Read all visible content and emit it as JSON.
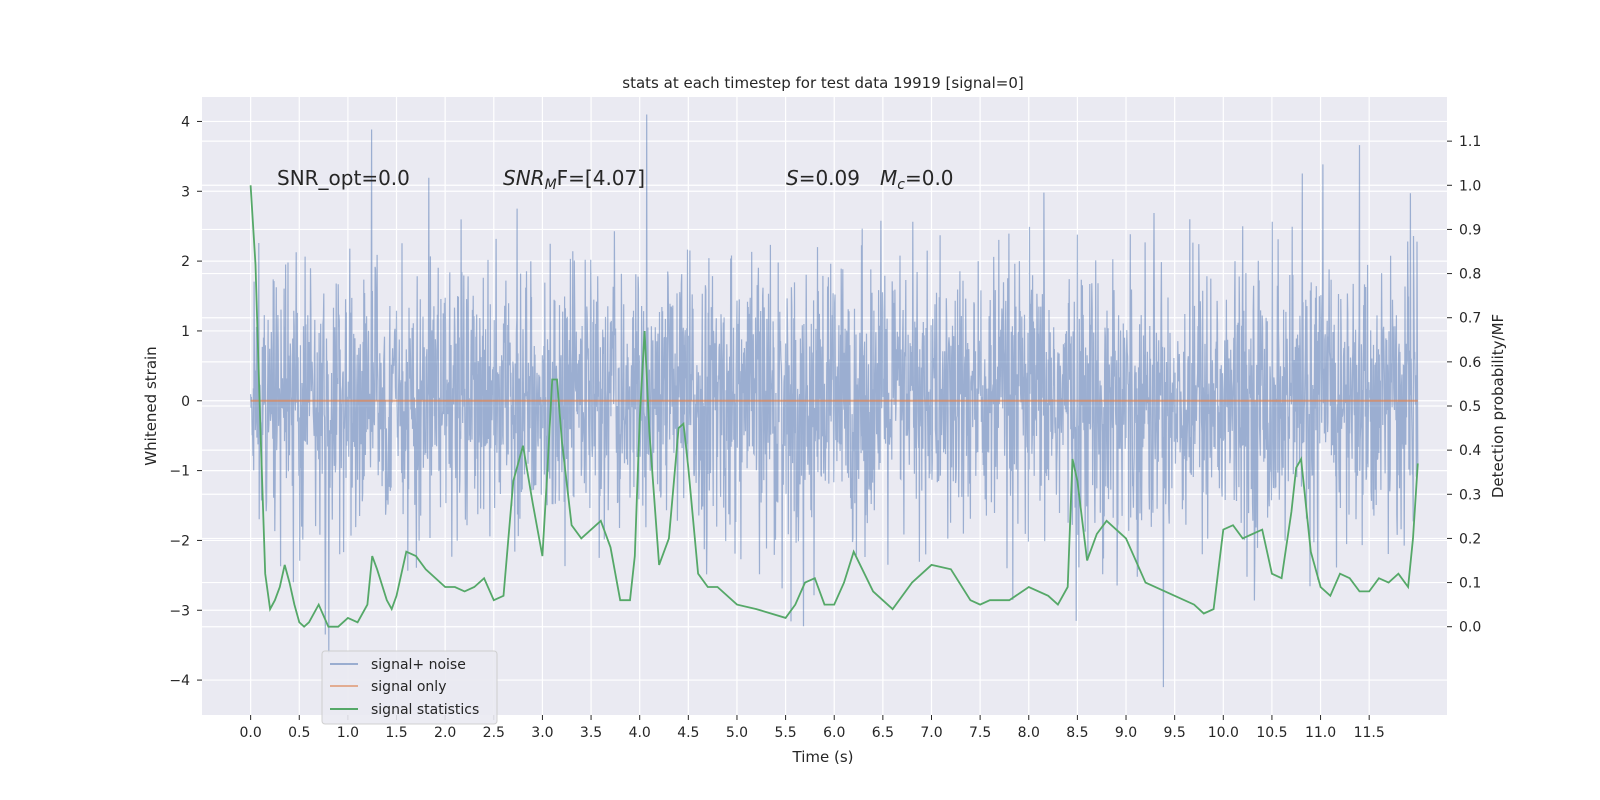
{
  "chart_data": {
    "type": "line",
    "title": "stats at each timestep for test data 19919 [signal=0]",
    "xlabel": "Time (s)",
    "ylabel_left": "Whitened strain",
    "ylabel_right": "Detection probability/MF",
    "xlim": [
      -0.5,
      12.3
    ],
    "ylim_left": [
      -4.5,
      4.35
    ],
    "ylim_right": [
      -0.2,
      1.2
    ],
    "x_ticks": [
      0.0,
      0.5,
      1.0,
      1.5,
      2.0,
      2.5,
      3.0,
      3.5,
      4.0,
      4.5,
      5.0,
      5.5,
      6.0,
      6.5,
      7.0,
      7.5,
      8.0,
      8.5,
      9.0,
      9.5,
      10.0,
      10.5,
      11.0,
      11.5
    ],
    "x_tick_labels": [
      "0.0",
      "0.5",
      "1.0",
      "1.5",
      "2.0",
      "2.5",
      "3.0",
      "3.5",
      "4.0",
      "4.5",
      "5.0",
      "5.5",
      "6.0",
      "6.5",
      "7.0",
      "7.5",
      "8.0",
      "8.5",
      "9.0",
      "9.5",
      "10.0",
      "10.5",
      "11.0",
      "11.5"
    ],
    "y_ticks_left": [
      -4,
      -3,
      -2,
      -1,
      0,
      1,
      2,
      3,
      4
    ],
    "y_tick_labels_left": [
      "−4",
      "−3",
      "−2",
      "−1",
      "0",
      "1",
      "2",
      "3",
      "4"
    ],
    "y_ticks_right": [
      0.0,
      0.1,
      0.2,
      0.3,
      0.4,
      0.5,
      0.6,
      0.7,
      0.8,
      0.9,
      1.0,
      1.1
    ],
    "y_tick_labels_right": [
      "0.0",
      "0.1",
      "0.2",
      "0.3",
      "0.4",
      "0.5",
      "0.6",
      "0.7",
      "0.8",
      "0.9",
      "1.0",
      "1.1"
    ],
    "grid": true,
    "legend_position": "lower-left",
    "annotations": {
      "snr_opt": "SNR_opt=0.0",
      "snr_mf_main": "SNR",
      "snr_mf_sub": "M",
      "snr_mf_rest": "F=[4.07]",
      "s_label": "S",
      "s_value": "=0.09",
      "mc_main": "M",
      "mc_sub": "c",
      "mc_value": "=0.0"
    },
    "colors": {
      "noise": "#4c72b0",
      "signal": "#dd8452",
      "stats": "#55a868",
      "background": "#eaeaf2",
      "grid": "#ffffff"
    },
    "series": [
      {
        "name": "signal+ noise",
        "axis": "left",
        "description_stats": {
          "x_start": 0.0,
          "x_end": 12.0,
          "typical_amplitude": 2.1,
          "max_abs": 4.1
        }
      },
      {
        "name": "signal only",
        "axis": "left",
        "x": [
          0.0,
          12.0
        ],
        "y": [
          0.0,
          0.0
        ]
      },
      {
        "name": "signal statistics",
        "axis": "right",
        "x": [
          0.0,
          0.05,
          0.1,
          0.15,
          0.2,
          0.25,
          0.3,
          0.35,
          0.4,
          0.45,
          0.5,
          0.55,
          0.6,
          0.7,
          0.8,
          0.9,
          1.0,
          1.1,
          1.2,
          1.25,
          1.3,
          1.4,
          1.45,
          1.5,
          1.6,
          1.7,
          1.8,
          2.0,
          2.1,
          2.2,
          2.3,
          2.4,
          2.5,
          2.6,
          2.7,
          2.8,
          2.9,
          3.0,
          3.05,
          3.1,
          3.15,
          3.2,
          3.3,
          3.4,
          3.5,
          3.6,
          3.7,
          3.8,
          3.9,
          3.95,
          4.0,
          4.05,
          4.1,
          4.2,
          4.3,
          4.4,
          4.45,
          4.5,
          4.6,
          4.7,
          4.8,
          5.0,
          5.2,
          5.5,
          5.6,
          5.7,
          5.8,
          5.9,
          6.0,
          6.1,
          6.2,
          6.4,
          6.6,
          6.8,
          7.0,
          7.2,
          7.4,
          7.5,
          7.6,
          7.8,
          8.0,
          8.2,
          8.3,
          8.4,
          8.45,
          8.5,
          8.6,
          8.7,
          8.8,
          9.0,
          9.2,
          9.5,
          9.7,
          9.8,
          9.9,
          10.0,
          10.1,
          10.2,
          10.3,
          10.4,
          10.5,
          10.6,
          10.7,
          10.75,
          10.8,
          10.9,
          11.0,
          11.1,
          11.2,
          11.3,
          11.4,
          11.5,
          11.6,
          11.7,
          11.8,
          11.9,
          11.95,
          12.0
        ],
        "y": [
          1.0,
          0.82,
          0.45,
          0.12,
          0.04,
          0.06,
          0.09,
          0.14,
          0.1,
          0.05,
          0.01,
          0.0,
          0.01,
          0.05,
          0.0,
          0.0,
          0.02,
          0.01,
          0.05,
          0.16,
          0.13,
          0.06,
          0.04,
          0.07,
          0.17,
          0.16,
          0.13,
          0.09,
          0.09,
          0.08,
          0.09,
          0.11,
          0.06,
          0.07,
          0.33,
          0.41,
          0.28,
          0.16,
          0.35,
          0.56,
          0.56,
          0.42,
          0.23,
          0.2,
          0.22,
          0.24,
          0.18,
          0.06,
          0.06,
          0.16,
          0.47,
          0.67,
          0.44,
          0.14,
          0.2,
          0.45,
          0.46,
          0.36,
          0.12,
          0.09,
          0.09,
          0.05,
          0.04,
          0.02,
          0.05,
          0.1,
          0.11,
          0.05,
          0.05,
          0.1,
          0.17,
          0.08,
          0.04,
          0.1,
          0.14,
          0.13,
          0.06,
          0.05,
          0.06,
          0.06,
          0.09,
          0.07,
          0.05,
          0.09,
          0.38,
          0.33,
          0.15,
          0.21,
          0.24,
          0.2,
          0.1,
          0.07,
          0.05,
          0.03,
          0.04,
          0.22,
          0.23,
          0.2,
          0.21,
          0.22,
          0.12,
          0.11,
          0.26,
          0.36,
          0.38,
          0.17,
          0.09,
          0.07,
          0.12,
          0.11,
          0.08,
          0.08,
          0.11,
          0.1,
          0.12,
          0.09,
          0.2,
          0.37
        ]
      }
    ]
  }
}
